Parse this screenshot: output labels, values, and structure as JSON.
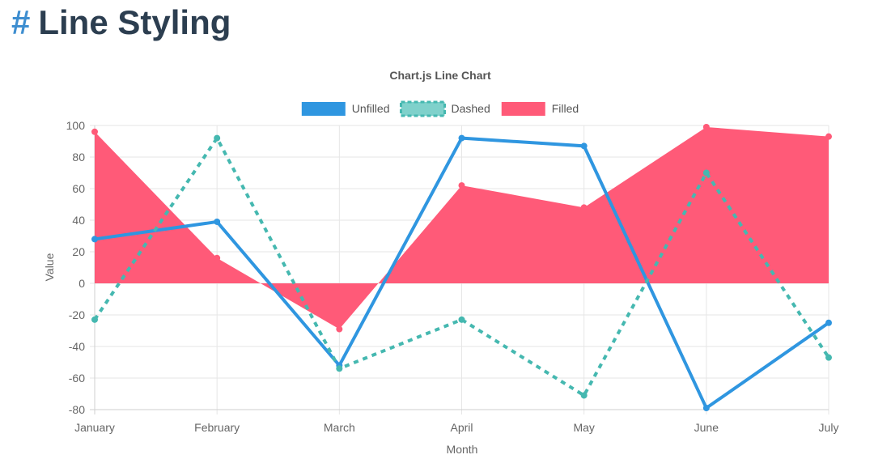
{
  "page": {
    "heading_marker": "#",
    "heading": "Line Styling"
  },
  "chart_data": {
    "type": "line",
    "title": "Chart.js Line Chart",
    "xlabel": "Month",
    "ylabel": "Value",
    "categories": [
      "January",
      "February",
      "March",
      "April",
      "May",
      "June",
      "July"
    ],
    "ylim": [
      -80,
      100
    ],
    "yticks": [
      100,
      80,
      60,
      40,
      20,
      0,
      -20,
      -40,
      -60,
      -80
    ],
    "ytick_labels": [
      "100",
      "80",
      "60",
      "40",
      "20",
      "0",
      "-20",
      "-40",
      "-60",
      "-80"
    ],
    "grid": true,
    "legend_position": "top",
    "series": [
      {
        "name": "Unfilled",
        "style": "solid",
        "fill": false,
        "color": "#2f96e0",
        "values": [
          28,
          39,
          -52,
          92,
          87,
          -79,
          -25
        ]
      },
      {
        "name": "Dashed",
        "style": "dashed",
        "fill": false,
        "color": "#45b8b0",
        "values": [
          -23,
          92,
          -54,
          -23,
          -71,
          70,
          -47
        ]
      },
      {
        "name": "Filled",
        "style": "solid",
        "fill": true,
        "color": "#ff5a78",
        "values": [
          96,
          16,
          -29,
          62,
          48,
          99,
          93
        ]
      }
    ]
  }
}
